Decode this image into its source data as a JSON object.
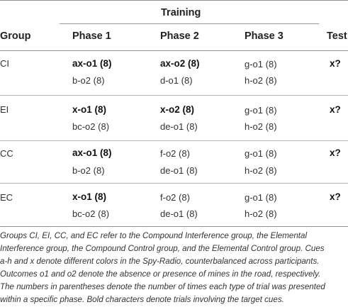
{
  "table": {
    "header": {
      "training": "Training",
      "group": "Group",
      "phase1": "Phase 1",
      "phase2": "Phase 2",
      "phase3": "Phase 3",
      "test": "Test"
    },
    "groups": [
      {
        "name": "CI",
        "test": "x?",
        "rows": [
          {
            "p1": "ax-o1 (8)",
            "p1_bold": true,
            "p2": "ax-o2 (8)",
            "p2_bold": true,
            "p3": "g-o1 (8)"
          },
          {
            "p1": "b-o2 (8)",
            "p1_bold": false,
            "p2": "d-o1 (8)",
            "p2_bold": false,
            "p3": "h-o2 (8)"
          }
        ]
      },
      {
        "name": "EI",
        "test": "x?",
        "rows": [
          {
            "p1": "x-o1 (8)",
            "p1_bold": true,
            "p2": "x-o2 (8)",
            "p2_bold": true,
            "p3": "g-o1 (8)"
          },
          {
            "p1": "bc-o2 (8)",
            "p1_bold": false,
            "p2": "de-o1 (8)",
            "p2_bold": false,
            "p3": "h-o2 (8)"
          }
        ]
      },
      {
        "name": "CC",
        "test": "x?",
        "rows": [
          {
            "p1": "ax-o1 (8)",
            "p1_bold": true,
            "p2": "f-o2 (8)",
            "p2_bold": false,
            "p3": "g-o1 (8)"
          },
          {
            "p1": "b-o2 (8)",
            "p1_bold": false,
            "p2": "de-o1 (8)",
            "p2_bold": false,
            "p3": "h-o2 (8)"
          }
        ]
      },
      {
        "name": "EC",
        "test": "x?",
        "rows": [
          {
            "p1": "x-o1 (8)",
            "p1_bold": true,
            "p2": "f-o2 (8)",
            "p2_bold": false,
            "p3": "g-o1 (8)"
          },
          {
            "p1": "bc-o2 (8)",
            "p1_bold": false,
            "p2": "de-o1 (8)",
            "p2_bold": false,
            "p3": "h-o2 (8)"
          }
        ]
      }
    ]
  },
  "caption": {
    "lines": [
      "Groups CI, EI, CC, and EC refer to the Compound Interference group, the Elemental",
      "Interference group, the Compound Control group, and the Elemental Control group. Cues",
      "a-h and x denote different colors in the Spy-Radio, counterbalanced across participants.",
      "Outcomes o1 and o2 denote the absence or presence of mines in the road, respectively.",
      "The numbers in parentheses denote the number of times each type of trial was presented",
      "within a specific phase. Bold characters denote trials involving the target cues."
    ]
  }
}
